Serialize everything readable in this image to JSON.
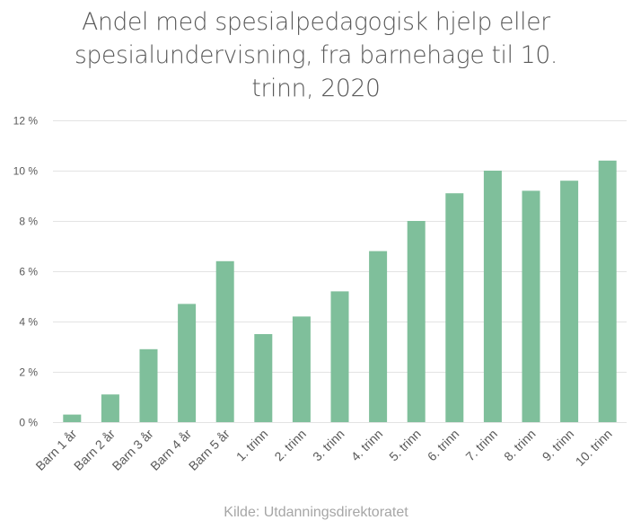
{
  "title_lines": [
    "Andel med spesialpedagogisk hjelp eller",
    "spesialundervisning, fra barnehage til 10.",
    "trinn, 2020"
  ],
  "source": "Kilde: Utdanningsdirektoratet",
  "colors": {
    "bar": "#7fbf9b",
    "grid": "#e3e3e3",
    "axis_text": "#595959",
    "title": "#595959",
    "source": "#a6a6a6"
  },
  "chart_data": {
    "type": "bar",
    "title": "Andel med spesialpedagogisk hjelp eller spesialundervisning, fra barnehage til 10. trinn, 2020",
    "xlabel": "",
    "ylabel": "",
    "categories": [
      "Barn 1 år",
      "Barn 2 år",
      "Barn 3 år",
      "Barn 4 år",
      "Barn 5 år",
      "1. trinn",
      "2. trinn",
      "3. trinn",
      "4. trinn",
      "5. trinn",
      "6. trinn",
      "7. trinn",
      "8. trinn",
      "9. trinn",
      "10. trinn"
    ],
    "values": [
      0.3,
      1.1,
      2.9,
      4.7,
      6.4,
      3.5,
      4.2,
      5.2,
      6.8,
      8.0,
      9.1,
      10.0,
      9.2,
      9.6,
      10.4
    ],
    "ylim": [
      0,
      12
    ],
    "yticks": [
      0,
      2,
      4,
      6,
      8,
      10,
      12
    ],
    "ytick_labels": [
      "0 %",
      "2 %",
      "4 %",
      "6 %",
      "8 %",
      "10 %",
      "12 %"
    ],
    "grid": true,
    "legend": "none"
  }
}
